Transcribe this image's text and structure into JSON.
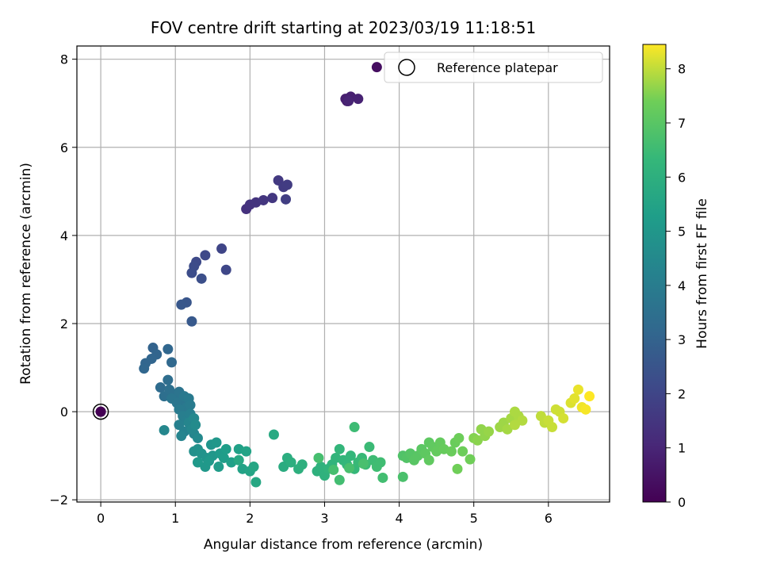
{
  "chart_data": {
    "type": "scatter",
    "title": "FOV centre drift starting at 2023/03/19 11:18:51",
    "xlabel": "Angular distance from reference (arcmin)",
    "ylabel": "Rotation from reference (arcmin)",
    "xlim": [
      -0.32,
      6.82
    ],
    "ylim": [
      -2.05,
      8.3
    ],
    "xticks": [
      0,
      1,
      2,
      3,
      4,
      5,
      6
    ],
    "yticks": [
      -2,
      0,
      2,
      4,
      6,
      8
    ],
    "grid": true,
    "legend": {
      "position": "top-right",
      "entries": [
        "Reference platepar"
      ]
    },
    "colorbar": {
      "label": "Hours from first FF file",
      "range": [
        0,
        8.45
      ],
      "ticks": [
        0,
        1,
        2,
        3,
        4,
        5,
        6,
        7,
        8
      ],
      "colormap": "viridis"
    },
    "reference_point": {
      "x": 0,
      "y": 0,
      "color_value": 0
    },
    "series": [
      {
        "points": [
          [
            0,
            0,
            0
          ],
          [
            3.7,
            7.82,
            0.35
          ],
          [
            3.3,
            7.05,
            0.75
          ],
          [
            3.28,
            7.1,
            0.8
          ],
          [
            3.35,
            7.15,
            0.85
          ],
          [
            3.45,
            7.1,
            0.9
          ],
          [
            3.32,
            7.05,
            0.95
          ],
          [
            1.95,
            4.6,
            1.35
          ],
          [
            2.0,
            4.7,
            1.4
          ],
          [
            2.08,
            4.75,
            1.45
          ],
          [
            2.18,
            4.8,
            1.5
          ],
          [
            2.3,
            4.85,
            1.55
          ],
          [
            2.38,
            5.25,
            1.6
          ],
          [
            2.45,
            5.1,
            1.65
          ],
          [
            2.5,
            5.15,
            1.7
          ],
          [
            2.48,
            4.82,
            1.75
          ],
          [
            1.62,
            3.7,
            2.0
          ],
          [
            1.68,
            3.22,
            2.05
          ],
          [
            1.4,
            3.55,
            2.1
          ],
          [
            1.28,
            3.4,
            2.15
          ],
          [
            1.25,
            3.3,
            2.2
          ],
          [
            1.22,
            3.15,
            2.25
          ],
          [
            1.35,
            3.02,
            2.3
          ],
          [
            1.15,
            2.48,
            2.55
          ],
          [
            1.08,
            2.43,
            2.6
          ],
          [
            1.22,
            2.05,
            2.65
          ],
          [
            0.7,
            1.45,
            3.0
          ],
          [
            0.75,
            1.3,
            3.05
          ],
          [
            0.68,
            1.2,
            3.1
          ],
          [
            0.6,
            1.1,
            3.1
          ],
          [
            0.58,
            0.98,
            3.15
          ],
          [
            0.9,
            1.42,
            3.15
          ],
          [
            0.95,
            1.12,
            3.2
          ],
          [
            0.8,
            0.55,
            3.35
          ],
          [
            0.9,
            0.72,
            3.4
          ],
          [
            0.85,
            0.35,
            3.45
          ],
          [
            0.92,
            0.5,
            3.5
          ],
          [
            0.98,
            0.4,
            3.55
          ],
          [
            1.0,
            0.3,
            3.6
          ],
          [
            1.05,
            0.45,
            3.65
          ],
          [
            1.1,
            0.25,
            3.7
          ],
          [
            0.95,
            0.3,
            3.7
          ],
          [
            1.02,
            0.2,
            3.75
          ],
          [
            1.12,
            0.35,
            3.8
          ],
          [
            1.15,
            0.1,
            3.85
          ],
          [
            1.05,
            0.05,
            3.9
          ],
          [
            1.18,
            0.3,
            3.9
          ],
          [
            1.2,
            0.15,
            3.95
          ],
          [
            1.1,
            -0.1,
            4.05
          ],
          [
            1.15,
            -0.2,
            4.1
          ],
          [
            1.2,
            -0.05,
            4.1
          ],
          [
            1.05,
            -0.3,
            4.15
          ],
          [
            1.12,
            -0.45,
            4.2
          ],
          [
            1.2,
            -0.35,
            4.25
          ],
          [
            1.25,
            -0.5,
            4.3
          ],
          [
            1.08,
            -0.55,
            4.3
          ],
          [
            1.18,
            -0.25,
            4.35
          ],
          [
            1.22,
            -0.4,
            4.4
          ],
          [
            0.85,
            -0.42,
            4.4
          ],
          [
            1.25,
            -0.15,
            4.45
          ],
          [
            1.3,
            -0.6,
            4.5
          ],
          [
            1.27,
            -0.3,
            4.55
          ],
          [
            1.25,
            -0.9,
            4.75
          ],
          [
            1.3,
            -0.85,
            4.8
          ],
          [
            1.35,
            -0.95,
            4.85
          ],
          [
            1.42,
            -1.05,
            4.9
          ],
          [
            1.48,
            -0.75,
            4.95
          ],
          [
            1.5,
            -1.0,
            5.0
          ],
          [
            1.55,
            -0.7,
            5.0
          ],
          [
            1.4,
            -1.25,
            5.05
          ],
          [
            1.3,
            -1.15,
            5.1
          ],
          [
            1.45,
            -1.12,
            5.1
          ],
          [
            1.6,
            -0.95,
            5.15
          ],
          [
            1.58,
            -1.25,
            5.2
          ],
          [
            1.65,
            -1.05,
            5.25
          ],
          [
            1.68,
            -0.85,
            5.3
          ],
          [
            1.75,
            -1.15,
            5.35
          ],
          [
            1.85,
            -0.85,
            5.4
          ],
          [
            1.9,
            -1.3,
            5.45
          ],
          [
            1.95,
            -0.9,
            5.5
          ],
          [
            2.0,
            -1.35,
            5.55
          ],
          [
            2.05,
            -1.25,
            5.6
          ],
          [
            2.08,
            -1.6,
            5.65
          ],
          [
            1.85,
            -1.1,
            5.7
          ],
          [
            2.32,
            -0.52,
            5.75
          ],
          [
            2.45,
            -1.25,
            5.85
          ],
          [
            2.5,
            -1.05,
            5.9
          ],
          [
            2.55,
            -1.15,
            5.95
          ],
          [
            2.65,
            -1.3,
            6.0
          ],
          [
            2.7,
            -1.2,
            6.0
          ],
          [
            2.9,
            -1.35,
            6.05
          ],
          [
            2.95,
            -1.25,
            6.1
          ],
          [
            3.0,
            -1.45,
            6.1
          ],
          [
            3.05,
            -1.3,
            6.15
          ],
          [
            3.1,
            -1.2,
            6.15
          ],
          [
            3.15,
            -1.05,
            6.2
          ],
          [
            3.2,
            -0.85,
            6.25
          ],
          [
            3.25,
            -1.1,
            6.25
          ],
          [
            3.3,
            -1.2,
            6.3
          ],
          [
            3.35,
            -1.0,
            6.3
          ],
          [
            3.4,
            -1.3,
            6.35
          ],
          [
            3.45,
            -1.15,
            6.4
          ],
          [
            3.5,
            -1.05,
            6.4
          ],
          [
            3.55,
            -1.2,
            6.45
          ],
          [
            3.6,
            -0.8,
            6.45
          ],
          [
            3.65,
            -1.1,
            6.5
          ],
          [
            3.4,
            -0.35,
            6.5
          ],
          [
            3.7,
            -1.25,
            6.55
          ],
          [
            3.75,
            -1.15,
            6.55
          ],
          [
            3.78,
            -1.5,
            6.6
          ],
          [
            3.2,
            -1.55,
            6.6
          ],
          [
            2.92,
            -1.05,
            6.65
          ],
          [
            3.12,
            -1.32,
            6.65
          ],
          [
            3.33,
            -1.28,
            6.7
          ],
          [
            3.52,
            -1.18,
            6.7
          ],
          [
            4.05,
            -1.48,
            6.75
          ],
          [
            4.05,
            -1.0,
            6.85
          ],
          [
            4.1,
            -1.05,
            6.9
          ],
          [
            4.15,
            -0.95,
            6.95
          ],
          [
            4.2,
            -1.1,
            7.0
          ],
          [
            4.25,
            -1.0,
            7.0
          ],
          [
            4.3,
            -0.85,
            7.05
          ],
          [
            4.35,
            -0.95,
            7.1
          ],
          [
            4.4,
            -0.7,
            7.1
          ],
          [
            4.45,
            -0.8,
            7.15
          ],
          [
            4.4,
            -1.1,
            7.15
          ],
          [
            4.5,
            -0.9,
            7.2
          ],
          [
            4.55,
            -0.7,
            7.2
          ],
          [
            4.6,
            -0.85,
            7.25
          ],
          [
            4.7,
            -0.9,
            7.3
          ],
          [
            4.75,
            -0.7,
            7.3
          ],
          [
            4.8,
            -0.6,
            7.35
          ],
          [
            4.85,
            -0.9,
            7.35
          ],
          [
            4.78,
            -1.3,
            7.4
          ],
          [
            4.95,
            -1.08,
            7.4
          ],
          [
            5.0,
            -0.6,
            7.55
          ],
          [
            5.05,
            -0.65,
            7.6
          ],
          [
            5.1,
            -0.4,
            7.65
          ],
          [
            5.15,
            -0.55,
            7.65
          ],
          [
            5.2,
            -0.45,
            7.7
          ],
          [
            5.35,
            -0.35,
            7.75
          ],
          [
            5.4,
            -0.25,
            7.75
          ],
          [
            5.45,
            -0.4,
            7.8
          ],
          [
            5.5,
            -0.15,
            7.8
          ],
          [
            5.55,
            0.0,
            7.85
          ],
          [
            5.6,
            -0.1,
            7.85
          ],
          [
            5.65,
            -0.2,
            7.9
          ],
          [
            5.55,
            -0.3,
            7.9
          ],
          [
            5.9,
            -0.1,
            8.0
          ],
          [
            5.95,
            -0.25,
            8.0
          ],
          [
            6.0,
            -0.2,
            8.05
          ],
          [
            6.05,
            -0.35,
            8.05
          ],
          [
            6.1,
            0.05,
            8.1
          ],
          [
            6.15,
            0.0,
            8.1
          ],
          [
            6.2,
            -0.15,
            8.15
          ],
          [
            6.3,
            0.2,
            8.2
          ],
          [
            6.35,
            0.3,
            8.25
          ],
          [
            6.4,
            0.5,
            8.3
          ],
          [
            6.45,
            0.1,
            8.35
          ],
          [
            6.5,
            0.05,
            8.4
          ],
          [
            6.55,
            0.35,
            8.45
          ]
        ]
      }
    ]
  }
}
